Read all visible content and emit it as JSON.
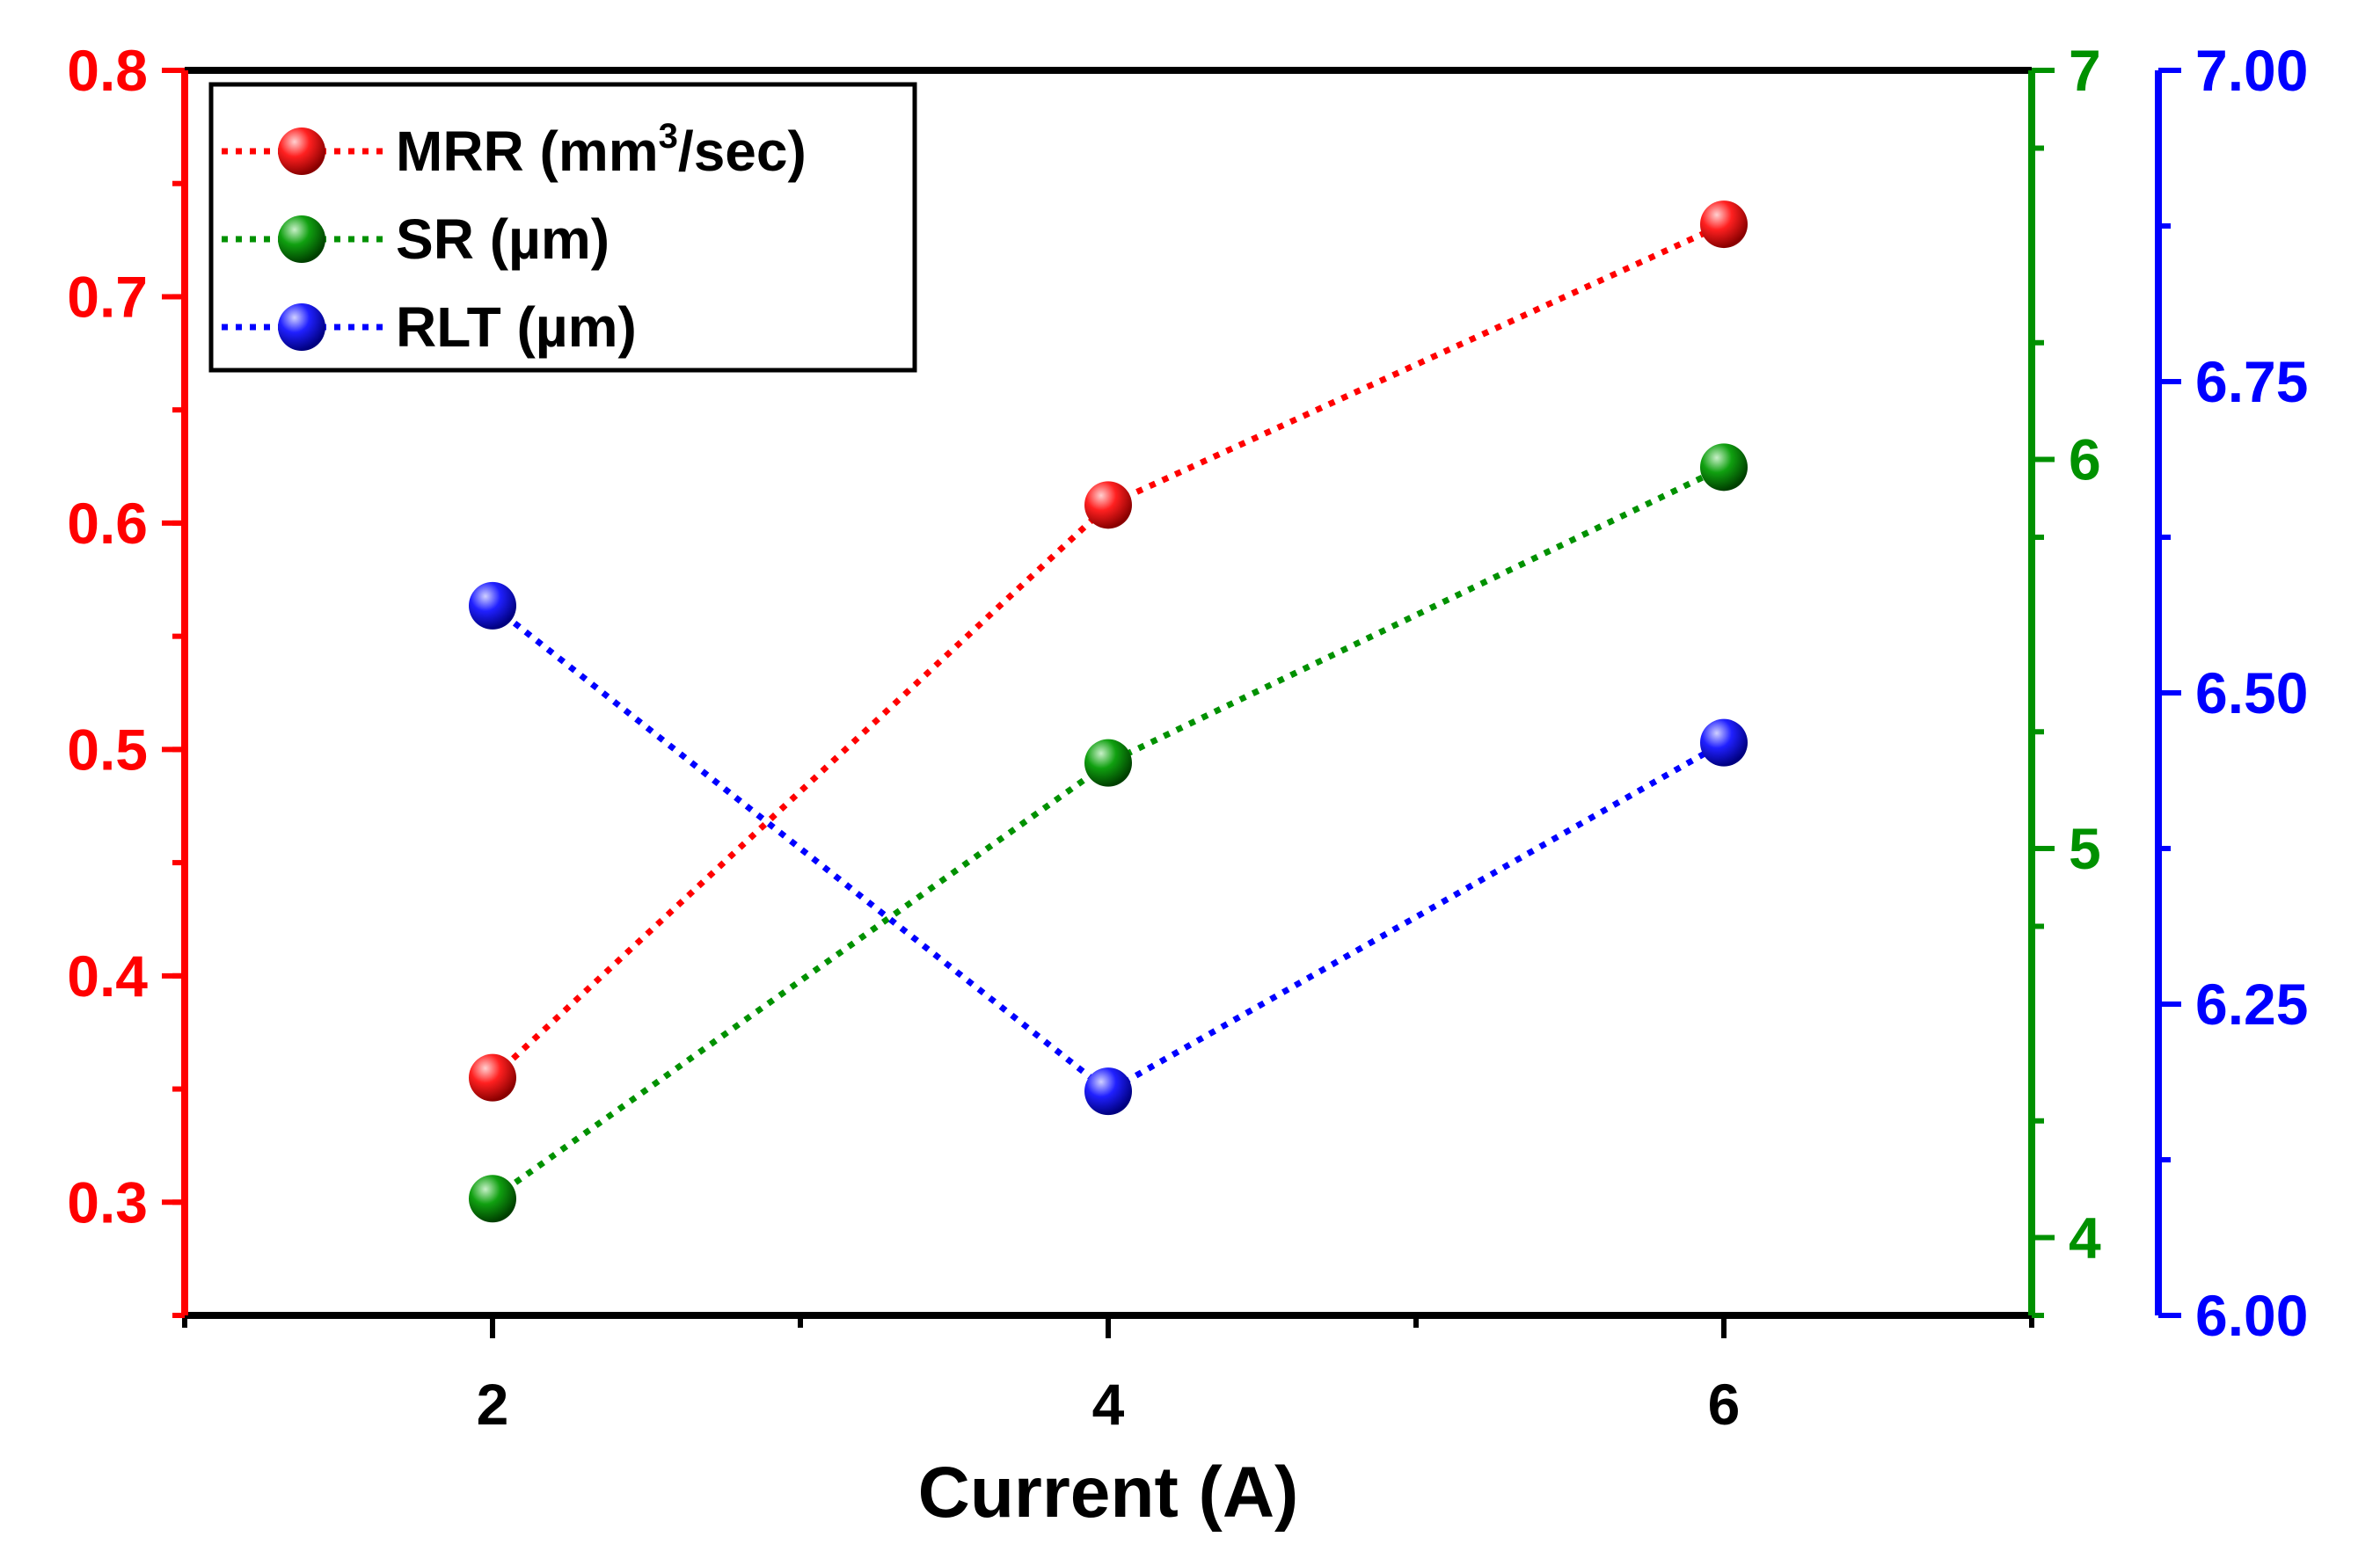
{
  "chart_data": {
    "type": "line",
    "x": [
      2,
      4,
      6
    ],
    "xlabel": "Current (A)",
    "xlim": [
      1,
      7
    ],
    "xticks": [
      "2",
      "4",
      "6"
    ],
    "series": [
      {
        "name": "MRR",
        "legend_prefix": "MRR (mm",
        "legend_sup": "3",
        "legend_suffix": "/sec)",
        "axis": "left",
        "color": "#ff0000",
        "values": [
          0.355,
          0.608,
          0.732
        ]
      },
      {
        "name": "SR",
        "legend": "SR (µm)",
        "axis": "right1",
        "color": "#009100",
        "values": [
          4.1,
          5.22,
          5.98
        ]
      },
      {
        "name": "RLT",
        "legend": "RLT (µm)",
        "axis": "right2",
        "color": "#0000ff",
        "values": [
          6.57,
          6.18,
          6.46
        ]
      }
    ],
    "axes": {
      "left": {
        "color": "#ff0000",
        "ylim": [
          0.25,
          0.8
        ],
        "ticks": [
          "0.3",
          "0.4",
          "0.5",
          "0.6",
          "0.7",
          "0.8"
        ]
      },
      "right1": {
        "color": "#009100",
        "ylim": [
          3.8,
          7.0
        ],
        "ticks": [
          "4",
          "5",
          "6",
          "7"
        ]
      },
      "right2": {
        "color": "#0000ff",
        "ylim": [
          6.0,
          7.0
        ],
        "ticks": [
          "6.00",
          "6.25",
          "6.50",
          "6.75",
          "7.00"
        ]
      }
    }
  }
}
